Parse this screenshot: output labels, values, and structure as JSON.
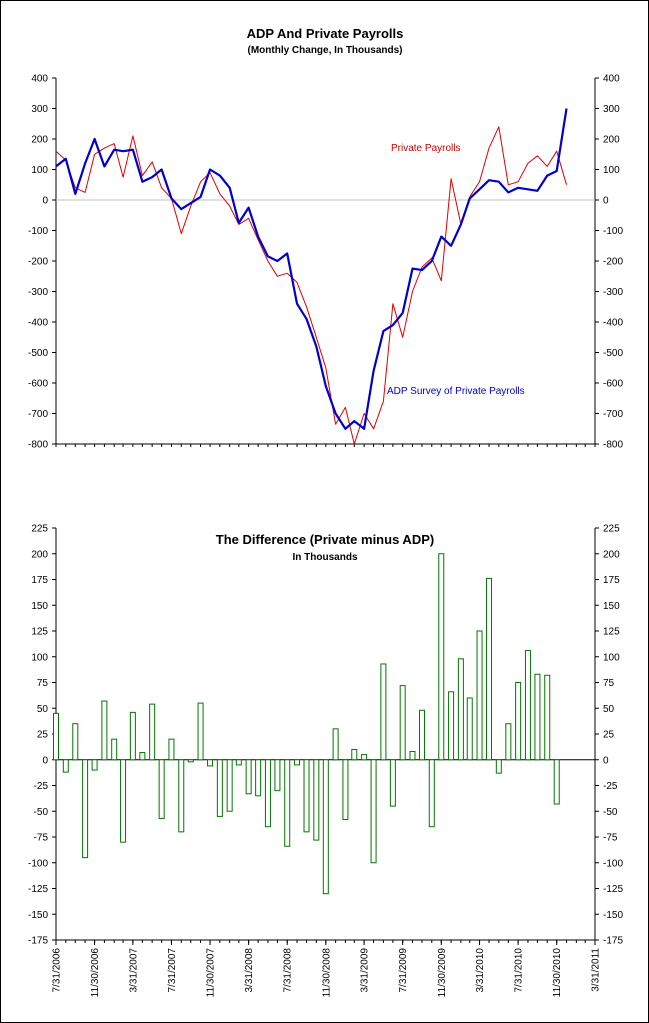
{
  "chart_data": [
    {
      "type": "line",
      "title": "ADP And Private Payrolls",
      "subtitle": "(Monthly Change, In Thousands)",
      "ylim": [
        -800,
        400
      ],
      "y_ticks": [
        400,
        300,
        200,
        100,
        0,
        -100,
        -200,
        -300,
        -400,
        -500,
        -600,
        -700,
        -800
      ],
      "xlim": [
        "2006-07-31",
        "2011-03-31"
      ],
      "x_ticks": [
        "7/31/2006",
        "11/30/2006",
        "3/31/2007",
        "7/31/2007",
        "11/30/2007",
        "3/31/2008",
        "7/31/2008",
        "11/30/2008",
        "3/31/2009",
        "7/31/2009",
        "11/30/2009",
        "3/31/2010",
        "7/31/2010",
        "11/30/2010",
        "3/31/2011"
      ],
      "grid": false,
      "zero_line": true,
      "annotations": [
        "Private Payrolls",
        "ADP Survey of Private Payrolls"
      ],
      "series": [
        {
          "name": "Private Payrolls",
          "color": "#dd0000",
          "start": "2006-07-31",
          "values": [
            160,
            130,
            40,
            25,
            150,
            170,
            185,
            75,
            210,
            80,
            125,
            40,
            5,
            -110,
            -20,
            60,
            90,
            20,
            -20,
            -80,
            -60,
            -130,
            -200,
            -250,
            -240,
            -270,
            -350,
            -450,
            -550,
            -735,
            -680,
            -800,
            -700,
            -750,
            -660,
            -340,
            -450,
            -300,
            -220,
            -190,
            -265,
            70,
            -80,
            10,
            60,
            170,
            240,
            50,
            60,
            120,
            145,
            110,
            160,
            50
          ]
        },
        {
          "name": "ADP Survey of Private Payrolls",
          "color": "#0000cc",
          "start": "2006-07-31",
          "values": [
            110,
            135,
            20,
            120,
            200,
            110,
            165,
            160,
            165,
            60,
            75,
            100,
            5,
            -30,
            -10,
            10,
            100,
            80,
            40,
            -75,
            -25,
            -120,
            -185,
            -200,
            -175,
            -340,
            -390,
            -480,
            -610,
            -700,
            -750,
            -725,
            -750,
            -560,
            -430,
            -410,
            -370,
            -225,
            -230,
            -200,
            -120,
            -150,
            -80,
            5,
            35,
            65,
            60,
            25,
            40,
            35,
            30,
            80,
            95,
            300
          ]
        }
      ]
    },
    {
      "type": "bar",
      "title": "The Difference (Private minus ADP)",
      "subtitle": "In Thousands",
      "ylim": [
        -175,
        225
      ],
      "y_ticks": [
        225,
        200,
        175,
        150,
        125,
        100,
        75,
        50,
        25,
        0,
        -25,
        -50,
        -75,
        -100,
        -125,
        -150,
        -175
      ],
      "xlim": [
        "2006-07-31",
        "2011-03-31"
      ],
      "x_ticks": [
        "7/31/2006",
        "11/30/2006",
        "3/31/2007",
        "7/31/2007",
        "11/30/2007",
        "3/31/2008",
        "7/31/2008",
        "11/30/2008",
        "3/31/2009",
        "7/31/2009",
        "11/30/2009",
        "3/31/2010",
        "7/31/2010",
        "11/30/2010",
        "3/31/2011"
      ],
      "grid": false,
      "bar_color": "#007700",
      "series": [
        {
          "start": "2006-07-31",
          "values": [
            45,
            -12,
            35,
            -95,
            -10,
            57,
            20,
            -80,
            46,
            7,
            54,
            -57,
            20,
            -70,
            -2,
            55,
            -6,
            -55,
            -50,
            -5,
            -33,
            -35,
            -65,
            -30,
            -84,
            -5,
            -70,
            -78,
            -130,
            30,
            -58,
            10,
            5,
            -100,
            93,
            -45,
            72,
            8,
            48,
            -65,
            200,
            66,
            98,
            60,
            125,
            176,
            -13,
            35,
            75,
            106,
            83,
            82,
            -43
          ]
        }
      ]
    }
  ]
}
